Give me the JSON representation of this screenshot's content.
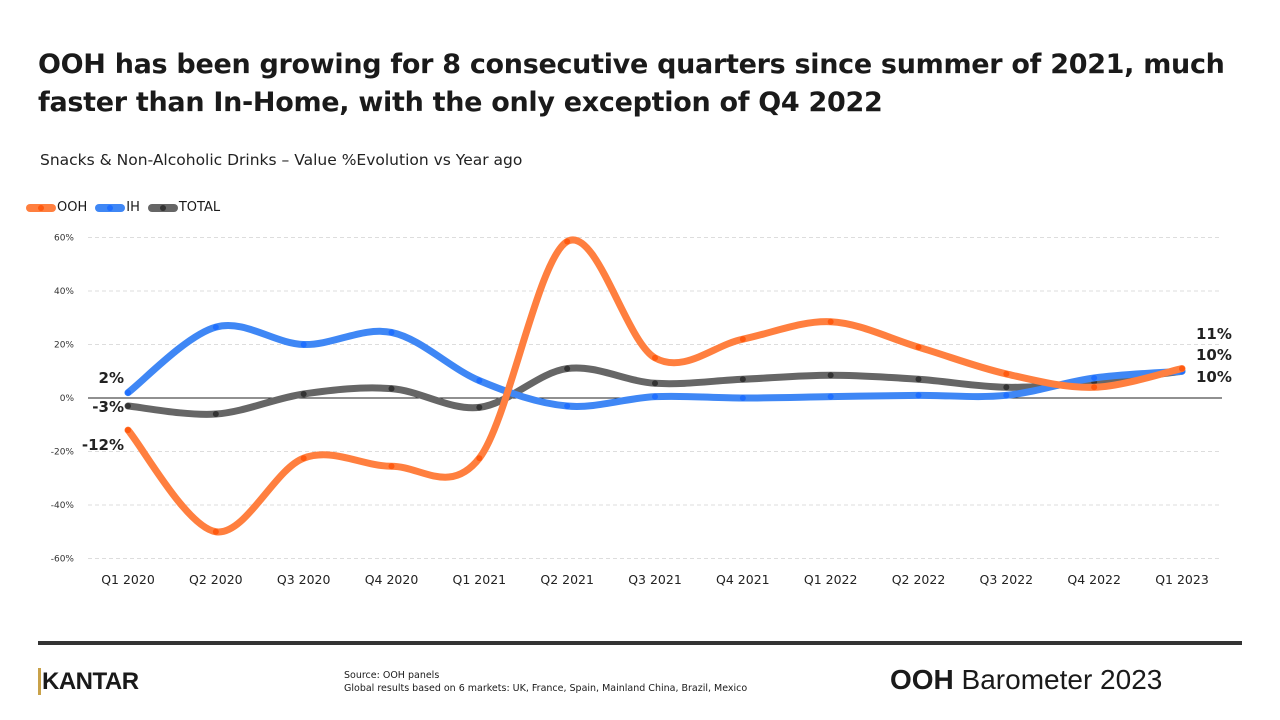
{
  "header": {
    "title": "OOH has been growing for 8 consecutive quarters since summer of 2021, much faster than In-Home, with the only exception of Q4 2022",
    "subtitle": "Snacks & Non-Alcoholic Drinks – Value %Evolution vs Year ago"
  },
  "chart_data": {
    "type": "line",
    "title": "",
    "xlabel": "",
    "ylabel": "",
    "ylim": [
      -60,
      60
    ],
    "yticks": [
      "60%",
      "40%",
      "20%",
      "0%",
      "-20%",
      "-40%",
      "-60%"
    ],
    "ytick_values": [
      60,
      40,
      20,
      0,
      -20,
      -40,
      -60
    ],
    "grid": true,
    "legend": "top-left",
    "categories": [
      "Q1 2020",
      "Q2 2020",
      "Q3 2020",
      "Q4 2020",
      "Q1 2021",
      "Q2 2021",
      "Q3 2021",
      "Q4 2021",
      "Q1 2022",
      "Q2 2022",
      "Q3 2022",
      "Q4 2022",
      "Q1 2023"
    ],
    "series": [
      {
        "name": "OOH",
        "color": "#ff7f3f",
        "marker": "#ff5a10",
        "values": [
          -12,
          -50,
          -22.5,
          -25.5,
          -22.5,
          58.5,
          15,
          22,
          28.5,
          19,
          9,
          4,
          11
        ],
        "start_label": "-12%",
        "end_label": "11%"
      },
      {
        "name": "IH",
        "color": "#3f87f5",
        "marker": "#1f6fff",
        "values": [
          2,
          26.5,
          20,
          24.5,
          6.5,
          -3,
          0.5,
          0,
          0.5,
          1,
          1,
          7.5,
          10
        ],
        "start_label": "2%",
        "end_label": "10%"
      },
      {
        "name": "TOTAL",
        "color": "#666666",
        "marker": "#333333",
        "values": [
          -3,
          -6,
          1.5,
          3.5,
          -3.5,
          11,
          5.5,
          7,
          8.5,
          7,
          4,
          6,
          10
        ],
        "start_label": "-3%",
        "end_label": "10%"
      }
    ]
  },
  "footer": {
    "logo": "KANTAR",
    "source_line1": "Source: OOH panels",
    "source_line2": "Global results based on 6 markets: UK, France, Spain, Mainland China, Brazil, Mexico",
    "brand_bold": "OOH",
    "brand_rest": " Barometer 2023"
  }
}
